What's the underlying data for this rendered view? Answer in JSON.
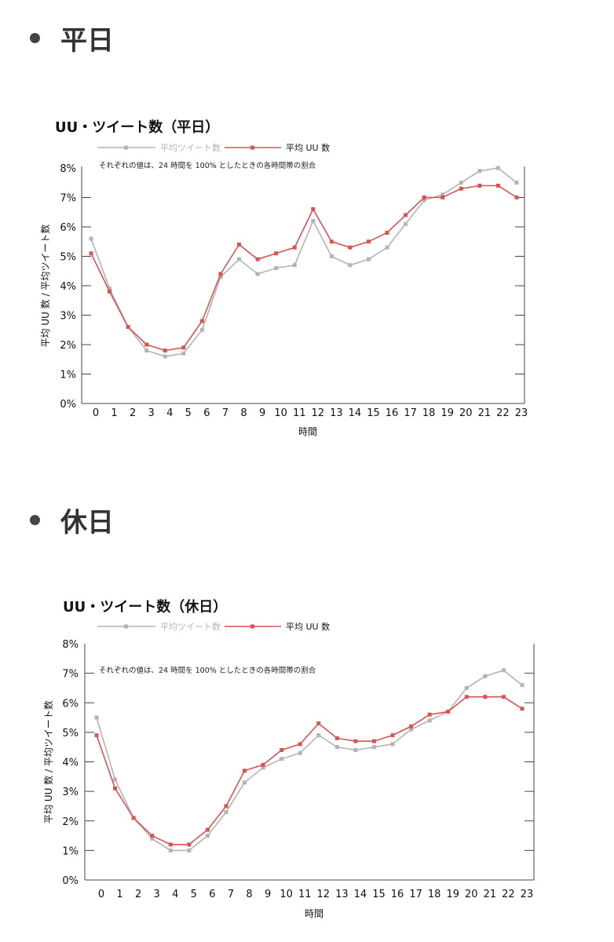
{
  "sections": [
    {
      "bullet": "•",
      "heading": "平日"
    },
    {
      "bullet": "•",
      "heading": "休日"
    }
  ],
  "colors": {
    "tweets": "#b3b3b3",
    "uu": "#d9534f",
    "frame": "#555555",
    "grid": "#777777"
  },
  "chart_data": [
    {
      "type": "line",
      "title": "UU・ツイート数（平日）",
      "note": "それぞれの値は、24 時間を 100% としたときの各時間帯の割合",
      "xlabel": "時間",
      "ylabel": "平均 UU 数 / 平均ツイート数",
      "ylim": [
        0,
        8
      ],
      "yticks": [
        "0%",
        "1%",
        "2%",
        "3%",
        "4%",
        "5%",
        "6%",
        "7%",
        "8%"
      ],
      "categories": [
        "0",
        "1",
        "2",
        "3",
        "4",
        "5",
        "6",
        "7",
        "8",
        "9",
        "10",
        "11",
        "12",
        "13",
        "14",
        "15",
        "16",
        "17",
        "18",
        "19",
        "20",
        "21",
        "22",
        "23"
      ],
      "legend_position": "top",
      "series": [
        {
          "name": "平均ツイート数",
          "color": "#b3b3b3",
          "values": [
            5.6,
            3.9,
            2.6,
            1.8,
            1.6,
            1.7,
            2.5,
            4.3,
            4.9,
            4.4,
            4.6,
            4.7,
            6.2,
            5.0,
            4.7,
            4.9,
            5.3,
            6.1,
            6.9,
            7.1,
            7.5,
            7.9,
            8.0,
            7.5
          ]
        },
        {
          "name": "平均 UU 数",
          "color": "#d9534f",
          "values": [
            5.1,
            3.8,
            2.6,
            2.0,
            1.8,
            1.9,
            2.8,
            4.4,
            5.4,
            4.9,
            5.1,
            5.3,
            6.6,
            5.5,
            5.3,
            5.5,
            5.8,
            6.4,
            7.0,
            7.0,
            7.3,
            7.4,
            7.4,
            7.0
          ]
        }
      ]
    },
    {
      "type": "line",
      "title": "UU・ツイート数（休日）",
      "note": "それぞれの値は、24 時間を 100% としたときの各時間帯の割合",
      "xlabel": "時間",
      "ylabel": "平均 UU 数 / 平均ツイート数",
      "ylim": [
        0,
        8
      ],
      "yticks": [
        "0%",
        "1%",
        "2%",
        "3%",
        "4%",
        "5%",
        "6%",
        "7%",
        "8%"
      ],
      "categories": [
        "0",
        "1",
        "2",
        "3",
        "4",
        "5",
        "6",
        "7",
        "8",
        "9",
        "10",
        "11",
        "12",
        "13",
        "14",
        "15",
        "16",
        "17",
        "18",
        "19",
        "20",
        "21",
        "22",
        "23"
      ],
      "legend_position": "top",
      "series": [
        {
          "name": "平均ツイート数",
          "color": "#b3b3b3",
          "values": [
            5.5,
            3.4,
            2.1,
            1.4,
            1.0,
            1.0,
            1.5,
            2.3,
            3.3,
            3.8,
            4.1,
            4.3,
            4.9,
            4.5,
            4.4,
            4.5,
            4.6,
            5.1,
            5.4,
            5.7,
            6.5,
            6.9,
            7.1,
            6.6
          ]
        },
        {
          "name": "平均 UU 数",
          "color": "#d9534f",
          "values": [
            4.9,
            3.1,
            2.1,
            1.5,
            1.2,
            1.2,
            1.7,
            2.5,
            3.7,
            3.9,
            4.4,
            4.6,
            5.3,
            4.8,
            4.7,
            4.7,
            4.9,
            5.2,
            5.6,
            5.7,
            6.2,
            6.2,
            6.2,
            5.8
          ]
        }
      ]
    }
  ]
}
